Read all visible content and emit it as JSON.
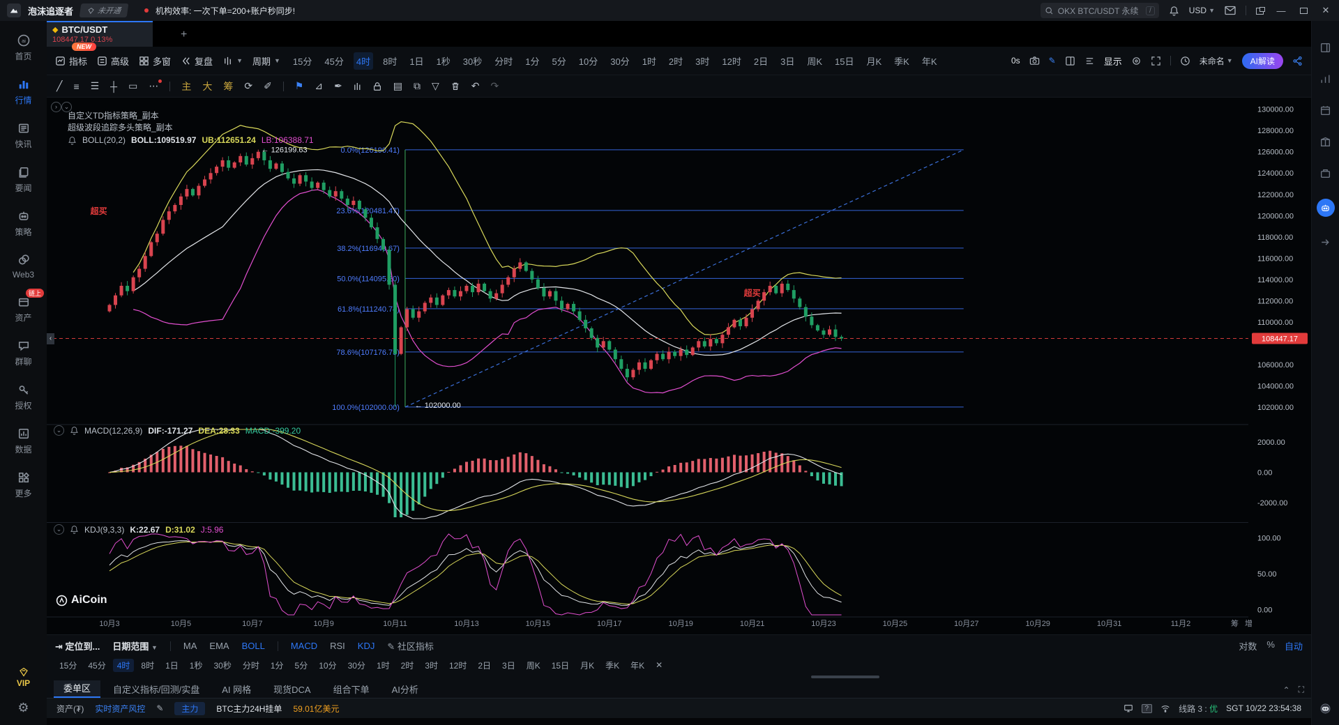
{
  "topbar": {
    "username": "泡沫追逐者",
    "vip_badge": "未开通",
    "notice": "机构效率: 一次下单=200+账户秒同步!",
    "search_placeholder": "OKX BTC/USDT 永续",
    "search_hint": "/",
    "currency": "USD"
  },
  "tab": {
    "symbol": "BTC/USDT",
    "price": "108447.17",
    "change": "0.13%",
    "new_badge": "NEW",
    "plus": "+"
  },
  "toolbar": {
    "indicators": "指标",
    "advanced": "高级",
    "multiwindow": "多窗",
    "replay": "复盘",
    "period": "周期",
    "timeframes": [
      "15分",
      "45分",
      "4时",
      "8时",
      "1日",
      "1秒",
      "30秒",
      "分时",
      "1分",
      "5分",
      "10分",
      "30分",
      "1时",
      "2时",
      "3时",
      "12时",
      "2日",
      "3日",
      "周K",
      "15日",
      "月K",
      "季K",
      "年K"
    ],
    "active_timeframe": "4时",
    "delay": "0s",
    "display_label": "显示",
    "layout_name": "未命名",
    "ai_button": "AI解读"
  },
  "drawbar": {
    "main": "主",
    "big": "大",
    "chip": "筹"
  },
  "sidebar": {
    "items": [
      {
        "label": "首页",
        "icon": "home"
      },
      {
        "label": "行情",
        "icon": "market",
        "active": true
      },
      {
        "label": "快讯",
        "icon": "news"
      },
      {
        "label": "要闻",
        "icon": "docs"
      },
      {
        "label": "策略",
        "icon": "robot"
      },
      {
        "label": "Web3",
        "icon": "web3"
      },
      {
        "label": "资产",
        "icon": "wallet",
        "badge": "链上"
      },
      {
        "label": "群聊",
        "icon": "chat"
      },
      {
        "label": "授权",
        "icon": "key"
      },
      {
        "label": "数据",
        "icon": "data"
      },
      {
        "label": "更多",
        "icon": "more"
      }
    ],
    "vip": "VIP"
  },
  "chart": {
    "strategy1": "自定义TD指标策略_副本",
    "strategy2": "超级波段追踪多头策略_副本",
    "boll_label": "BOLL(20,2)",
    "boll_mid": "BOLL:109519.97",
    "boll_ub": "UB:112651.24",
    "boll_lb": "LB:106388.71",
    "macd_header": {
      "name": "MACD(12,26,9)",
      "dif": "DIF:-171.27",
      "dea": "DEA:28.33",
      "macd": "MACD:-399.20"
    },
    "kdj_header": {
      "name": "KDJ(9,3,3)",
      "k": "K:22.67",
      "d": "D:31.02",
      "j": "J:5.96"
    },
    "watermark": "AiCoin"
  },
  "chart_data": {
    "type": "candlestick+indicators",
    "symbol": "BTC/USDT",
    "timeframe": "4h",
    "convention": "red=up, green=down (CN style)",
    "price_axis_ticks": [
      130000,
      128000,
      126000,
      124000,
      122000,
      120000,
      118000,
      116000,
      114000,
      112000,
      110000,
      106000,
      104000,
      102000
    ],
    "current_price": 108447.17,
    "current_price_label": "108447.17",
    "dates": [
      "10月3",
      "10月5",
      "10月7",
      "10月9",
      "10月11",
      "10月13",
      "10月15",
      "10月17",
      "10月19",
      "10月21",
      "10月23",
      "10月25",
      "10月27",
      "10月29",
      "10月31",
      "11月2"
    ],
    "axis_extra": [
      "筹",
      "增"
    ],
    "first_open": 111000,
    "closes": [
      111600,
      112500,
      113400,
      112900,
      114200,
      115000,
      116200,
      117500,
      118300,
      119600,
      120400,
      121000,
      121800,
      122500,
      121900,
      122800,
      123400,
      124000,
      124600,
      125200,
      124500,
      125000,
      125600,
      124800,
      125400,
      126000,
      125200,
      124400,
      124900,
      124100,
      123500,
      123000,
      123800,
      123200,
      122600,
      123100,
      122400,
      121800,
      122300,
      121600,
      121000,
      121400,
      120600,
      119800,
      118900,
      117800,
      116800,
      113500,
      107000,
      109500,
      111200,
      110400,
      111000,
      111800,
      112300,
      111600,
      112500,
      113000,
      112400,
      112900,
      113400,
      112800,
      113600,
      112900,
      112200,
      112700,
      113500,
      114200,
      115000,
      115600,
      114800,
      114000,
      113200,
      112400,
      112900,
      112000,
      111200,
      111700,
      111000,
      110200,
      109400,
      108500,
      107600,
      108200,
      107400,
      106500,
      105600,
      104800,
      105500,
      106200,
      105600,
      106400,
      107000,
      106500,
      107200,
      106800,
      107400,
      106900,
      107600,
      108200,
      107700,
      108400,
      108000,
      108800,
      109500,
      110200,
      109600,
      110400,
      111200,
      112000,
      112800,
      113400,
      112700,
      113600,
      113000,
      112200,
      111400,
      110500,
      109700,
      109200,
      108800,
      109300,
      108600,
      108447.17
    ],
    "overrides": {
      "25": {
        "high": 126199.63
      },
      "48": {
        "low": 102000
      }
    },
    "fib": [
      {
        "label": "0.0%(126190.41)",
        "value": 126190.41
      },
      {
        "label": "23.6%(120481.47)",
        "value": 120481.47
      },
      {
        "label": "38.2%(116949.67)",
        "value": 116949.67
      },
      {
        "label": "50.0%(114095.20)",
        "value": 114095.2
      },
      {
        "label": "61.8%(111240.74)",
        "value": 111240.74
      },
      {
        "label": "78.6%(107176.75)",
        "value": 107176.75
      },
      {
        "label": "100.0%(102000.00)",
        "value": 102000.0
      }
    ],
    "fib_span_days": {
      "from": 8.28,
      "to": 23.92
    },
    "trendline": {
      "from_day": 8.28,
      "from_price": 102000,
      "to_day": 23.92,
      "to_price": 126190
    },
    "annotations": [
      {
        "text": "← 126199.63",
        "day": 4.25,
        "price": 126199.63,
        "anchor": "start",
        "color": "#e8ecf1"
      },
      {
        "text": "← 102000.00",
        "day": 8.55,
        "price": 102180,
        "anchor": "start",
        "color": "#e8ecf1"
      },
      {
        "text": "超买",
        "day": -0.3,
        "price": 120400,
        "anchor": "middle",
        "color": "#e23b3b",
        "bold": true
      },
      {
        "text": "超买",
        "day": 18.0,
        "price": 112700,
        "anchor": "middle",
        "color": "#e23b3b",
        "bold": true
      }
    ],
    "macd_axis": [
      2000,
      0,
      -2000
    ],
    "kdj_axis": [
      100,
      50,
      0
    ],
    "boll": {
      "period": 20,
      "mult": 2
    },
    "macd_params": [
      12,
      26,
      9
    ],
    "kdj_params": [
      9,
      3,
      3
    ]
  },
  "colors": {
    "up": "#d9444f",
    "down": "#1f9e63",
    "accent": "#2d77f6",
    "boll_ub": "#d8d85a",
    "boll_mid": "#e2e5e9",
    "boll_lb": "#e24fd0",
    "fib_line": "#3565d8",
    "fib_text": "#4f7dff",
    "trend": "#3b6fd8",
    "cur_line": "#d43a3a",
    "tag_bg": "#e23b3b",
    "hist_pos": "#e2606c",
    "hist_neg": "#3bbd93",
    "axis_text": "#b6bdc6",
    "date_text": "#8b93a0",
    "vline": "#3fae5f"
  },
  "bottom": {
    "locate": "定位到...",
    "daterange": "日期范围",
    "ma_buttons": [
      {
        "label": "MA"
      },
      {
        "label": "EMA"
      },
      {
        "label": "BOLL",
        "on": true
      },
      {
        "label": "MACD",
        "on": true
      },
      {
        "label": "RSI"
      },
      {
        "label": "KDJ",
        "on": true
      },
      {
        "label": "社区指标"
      }
    ],
    "scale_buttons": [
      {
        "label": "对数"
      },
      {
        "label": "%"
      },
      {
        "label": "自动",
        "on": true
      }
    ],
    "tabs": [
      "委单区",
      "自定义指标/回测/实盘",
      "AI 网格",
      "现货DCA",
      "组合下单",
      "AI分析"
    ],
    "active_tab": "委单区"
  },
  "statusbar": {
    "assets": "资产(₮)",
    "risk": "实时资产风控",
    "main_pill": "主力",
    "orders_label": "BTC主力24H挂单",
    "orders_value": "59.01亿美元",
    "line_label": "线路 3 :",
    "line_quality": "优",
    "clock": "SGT 10/22 23:54:38"
  }
}
